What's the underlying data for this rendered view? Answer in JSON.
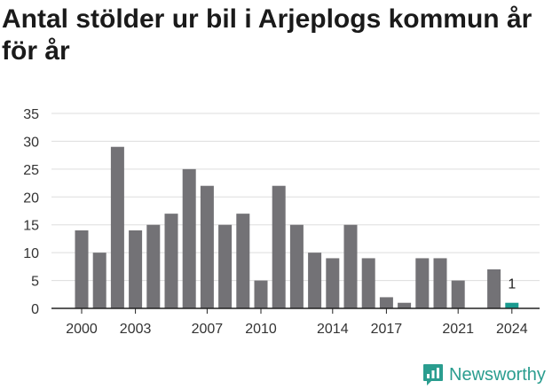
{
  "brand": {
    "name": "Newsworthy",
    "accent_color": "#2a9d8f",
    "icon": "newsworthy-logo-icon"
  },
  "chart_data": {
    "type": "bar",
    "title": "Antal stölder ur bil i Arjeplogs kommun år för år",
    "xlabel": "",
    "ylabel": "",
    "ylim": [
      0,
      35
    ],
    "yticks": [
      0,
      5,
      10,
      15,
      20,
      25,
      30,
      35
    ],
    "grid": true,
    "x_tick_labels": [
      "2000",
      "2003",
      "2007",
      "2010",
      "2014",
      "2017",
      "2021",
      "2024"
    ],
    "categories": [
      "2000",
      "2001",
      "2002",
      "2003",
      "2004",
      "2005",
      "2006",
      "2007",
      "2008",
      "2009",
      "2010",
      "2011",
      "2012",
      "2013",
      "2014",
      "2015",
      "2016",
      "2017",
      "2018",
      "2019",
      "2020",
      "2021",
      "2022",
      "2023",
      "2024"
    ],
    "values": [
      14,
      10,
      29,
      14,
      15,
      17,
      25,
      22,
      15,
      17,
      5,
      22,
      15,
      10,
      9,
      15,
      9,
      2,
      1,
      9,
      9,
      5,
      0,
      7,
      1
    ],
    "bar_color": "#737276",
    "highlight_color": "#1a9a8f",
    "highlight_category": "2024",
    "annotations": [
      {
        "category": "2024",
        "text": "1"
      }
    ]
  }
}
